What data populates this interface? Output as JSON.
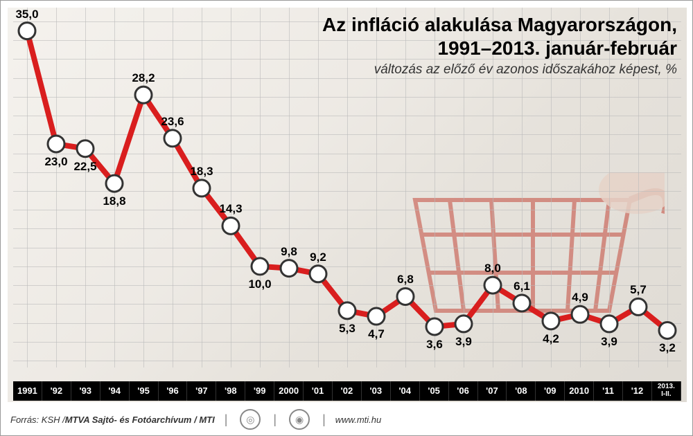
{
  "title_line1": "Az infláció alakulása Magyarországon,",
  "title_line2": "1991–2013. január-február",
  "subtitle": "változás az előző év azonos időszakához képest, %",
  "chart": {
    "type": "line",
    "line_color": "#d91e1e",
    "line_width": 8,
    "marker_fill": "#ffffff",
    "marker_stroke": "#333333",
    "marker_stroke_width": 3,
    "marker_radius": 12,
    "background_color": "#ffffff",
    "grid_color": "#bbbbbb",
    "ylim": [
      0,
      36
    ],
    "ytick_step": 2,
    "xaxis_band_bg": "#000000",
    "xaxis_label_color": "#ffffff",
    "data_label_fontsize": 17,
    "data_label_color": "#000000",
    "years": [
      "1991",
      "'92",
      "'93",
      "'94",
      "'95",
      "'96",
      "'97",
      "'98",
      "'99",
      "2000",
      "'01",
      "'02",
      "'03",
      "'04",
      "'05",
      "'06",
      "'07",
      "'08",
      "'09",
      "2010",
      "'11",
      "'12",
      "2013.\nI-II."
    ],
    "values": [
      35.0,
      23.0,
      22.5,
      18.8,
      28.2,
      23.6,
      18.3,
      14.3,
      10.0,
      9.8,
      9.2,
      5.3,
      4.7,
      6.8,
      3.6,
      3.9,
      8.0,
      6.1,
      4.2,
      4.9,
      3.9,
      5.7,
      3.2
    ],
    "value_labels": [
      "35,0",
      "23,0",
      "22,5",
      "18,8",
      "28,2",
      "23,6",
      "18,3",
      "14,3",
      "10,0",
      "9,8",
      "9,2",
      "5,3",
      "4,7",
      "6,8",
      "3,6",
      "3,9",
      "8,0",
      "6,1",
      "4,2",
      "4,9",
      "3,9",
      "5,7",
      "3,2"
    ],
    "label_pos": [
      "above",
      "below",
      "below",
      "below",
      "above",
      "above",
      "above",
      "above",
      "below",
      "above",
      "above",
      "below",
      "below",
      "above",
      "below",
      "below",
      "above",
      "above",
      "below",
      "above",
      "below",
      "above",
      "below"
    ]
  },
  "footer": {
    "source_prefix": "Forrás: KSH / ",
    "source_bold": "MTVA Sajtó- és Fotóarchívum / MTI",
    "url": "www.mti.hu"
  },
  "colors": {
    "page_bg": "#ffffff",
    "title_color": "#000000",
    "subtitle_color": "#333333"
  },
  "typography": {
    "title_fontsize": 28,
    "subtitle_fontsize": 19
  }
}
